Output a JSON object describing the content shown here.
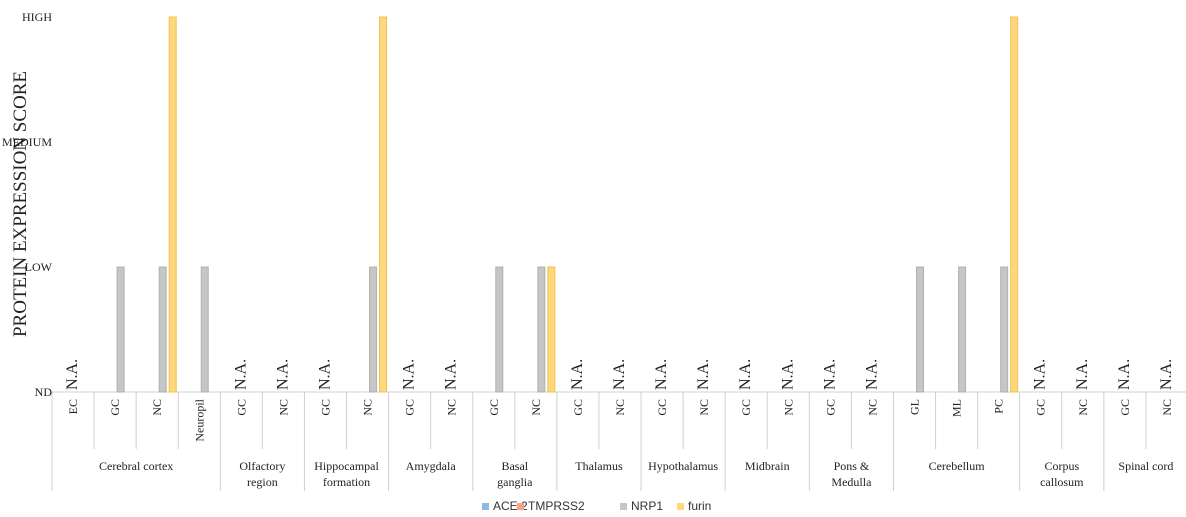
{
  "chart_data": {
    "type": "bar",
    "ylabel": "PROTEIN EXPRESSION SCORE",
    "y_levels": [
      "ND",
      "LOW",
      "MEDIUM",
      "HIGH"
    ],
    "ylim": [
      0,
      3
    ],
    "na_label": "N.A.",
    "legend_position": "bottom",
    "series": [
      {
        "name": "ACE 2",
        "color": "#8fb8de"
      },
      {
        "name": "TMPRSS2",
        "color": "#f4a582"
      },
      {
        "name": "NRP1",
        "color": "#c6c6c6"
      },
      {
        "name": "furin",
        "color": "#ffd77f"
      }
    ],
    "groups": [
      {
        "name": "Cerebral cortex",
        "cells": [
          {
            "label": "EC",
            "values": [
              0,
              0,
              0,
              0
            ],
            "na": true
          },
          {
            "label": "GC",
            "values": [
              0,
              0,
              1,
              0
            ],
            "na": false
          },
          {
            "label": "NC",
            "values": [
              0,
              0,
              1,
              3
            ],
            "na": false
          },
          {
            "label": "Neuropil",
            "values": [
              0,
              0,
              1,
              0
            ],
            "na": false
          }
        ]
      },
      {
        "name": "Olfactory region",
        "cells": [
          {
            "label": "GC",
            "values": [
              0,
              0,
              0,
              0
            ],
            "na": true
          },
          {
            "label": "NC",
            "values": [
              0,
              0,
              0,
              0
            ],
            "na": true
          }
        ]
      },
      {
        "name": "Hippocampal formation",
        "cells": [
          {
            "label": "GC",
            "values": [
              0,
              0,
              0,
              0
            ],
            "na": true
          },
          {
            "label": "NC",
            "values": [
              0,
              0,
              1,
              3
            ],
            "na": false
          }
        ]
      },
      {
        "name": "Amygdala",
        "cells": [
          {
            "label": "GC",
            "values": [
              0,
              0,
              0,
              0
            ],
            "na": true
          },
          {
            "label": "NC",
            "values": [
              0,
              0,
              0,
              0
            ],
            "na": true
          }
        ]
      },
      {
        "name": "Basal ganglia",
        "cells": [
          {
            "label": "GC",
            "values": [
              0,
              0,
              1,
              0
            ],
            "na": false
          },
          {
            "label": "NC",
            "values": [
              0,
              0,
              1,
              1
            ],
            "na": false
          }
        ]
      },
      {
        "name": "Thalamus",
        "cells": [
          {
            "label": "GC",
            "values": [
              0,
              0,
              0,
              0
            ],
            "na": true
          },
          {
            "label": "NC",
            "values": [
              0,
              0,
              0,
              0
            ],
            "na": true
          }
        ]
      },
      {
        "name": "Hypothalamus",
        "cells": [
          {
            "label": "GC",
            "values": [
              0,
              0,
              0,
              0
            ],
            "na": true
          },
          {
            "label": "NC",
            "values": [
              0,
              0,
              0,
              0
            ],
            "na": true
          }
        ]
      },
      {
        "name": "Midbrain",
        "cells": [
          {
            "label": "GC",
            "values": [
              0,
              0,
              0,
              0
            ],
            "na": true
          },
          {
            "label": "NC",
            "values": [
              0,
              0,
              0,
              0
            ],
            "na": true
          }
        ]
      },
      {
        "name": "Pons & Medulla",
        "cells": [
          {
            "label": "GC",
            "values": [
              0,
              0,
              0,
              0
            ],
            "na": true
          },
          {
            "label": "NC",
            "values": [
              0,
              0,
              0,
              0
            ],
            "na": true
          }
        ]
      },
      {
        "name": "Cerebellum",
        "cells": [
          {
            "label": "GL",
            "values": [
              0,
              0,
              1,
              0
            ],
            "na": false
          },
          {
            "label": "ML",
            "values": [
              0,
              0,
              1,
              0
            ],
            "na": false
          },
          {
            "label": "PC",
            "values": [
              0,
              0,
              1,
              3
            ],
            "na": false
          }
        ]
      },
      {
        "name": "Corpus callosum",
        "cells": [
          {
            "label": "GC",
            "values": [
              0,
              0,
              0,
              0
            ],
            "na": true
          },
          {
            "label": "NC",
            "values": [
              0,
              0,
              0,
              0
            ],
            "na": true
          }
        ]
      },
      {
        "name": "Spinal cord",
        "cells": [
          {
            "label": "GC",
            "values": [
              0,
              0,
              0,
              0
            ],
            "na": true
          },
          {
            "label": "NC",
            "values": [
              0,
              0,
              0,
              0
            ],
            "na": true
          }
        ]
      }
    ]
  }
}
